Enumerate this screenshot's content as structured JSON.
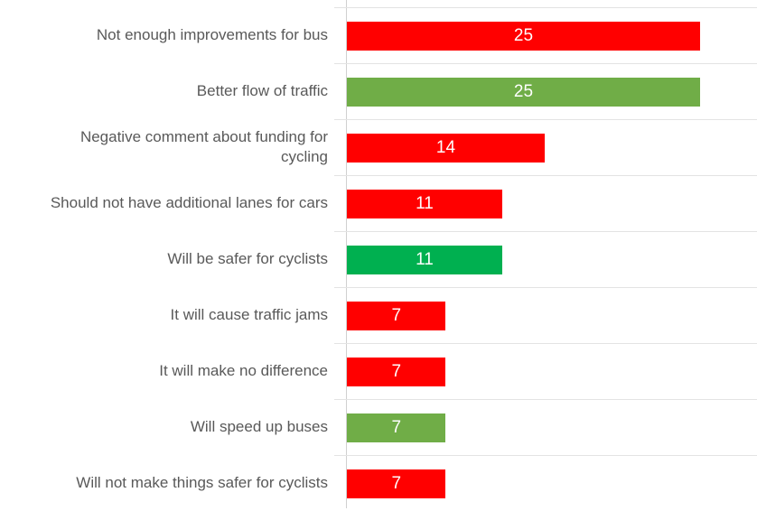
{
  "chart_data": {
    "type": "bar",
    "orientation": "horizontal",
    "categories": [
      "Not enough improvements for bus",
      "Better flow of traffic",
      "Negative comment about funding for cycling",
      "Should not have additional lanes for cars",
      "Will be safer for cyclists",
      "It will cause traffic jams",
      "It will make no difference",
      "Will speed up buses",
      "Will not make things safer for cyclists"
    ],
    "values": [
      25,
      25,
      14,
      11,
      11,
      7,
      7,
      7,
      7
    ],
    "colors": [
      "#ff0000",
      "#70ad47",
      "#ff0000",
      "#ff0000",
      "#00b050",
      "#ff0000",
      "#ff0000",
      "#70ad47",
      "#ff0000"
    ]
  }
}
